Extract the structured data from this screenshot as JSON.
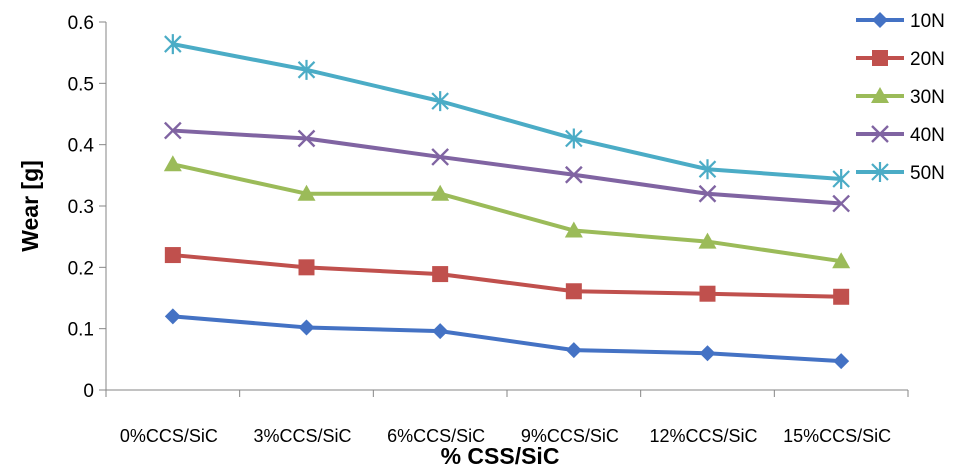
{
  "chart_data": {
    "type": "line",
    "xlabel": "% CSS/SiC",
    "ylabel": "Wear [g]",
    "categories": [
      "0%CCS/SiC",
      "3%CCS/SiC",
      "6%CCS/SiC",
      "9%CCS/SiC",
      "12%CCS/SiC",
      "15%CCS/SiC"
    ],
    "ylim": [
      0,
      0.6
    ],
    "yticks": [
      "0",
      "0.1",
      "0.2",
      "0.3",
      "0.4",
      "0.5",
      "0.6"
    ],
    "grid": false,
    "legend": "right",
    "series": [
      {
        "name": "10N",
        "color": "#4472C4",
        "marker": "diamond",
        "values": [
          0.12,
          0.102,
          0.096,
          0.065,
          0.06,
          0.047
        ]
      },
      {
        "name": "20N",
        "color": "#C0504D",
        "marker": "square",
        "values": [
          0.22,
          0.2,
          0.189,
          0.161,
          0.157,
          0.152
        ]
      },
      {
        "name": "30N",
        "color": "#9BBB59",
        "marker": "triangle",
        "values": [
          0.368,
          0.32,
          0.32,
          0.26,
          0.242,
          0.21
        ]
      },
      {
        "name": "40N",
        "color": "#8064A2",
        "marker": "x",
        "values": [
          0.423,
          0.41,
          0.38,
          0.351,
          0.32,
          0.304
        ]
      },
      {
        "name": "50N",
        "color": "#4BACC6",
        "marker": "star",
        "values": [
          0.564,
          0.522,
          0.471,
          0.41,
          0.36,
          0.344
        ]
      }
    ]
  }
}
